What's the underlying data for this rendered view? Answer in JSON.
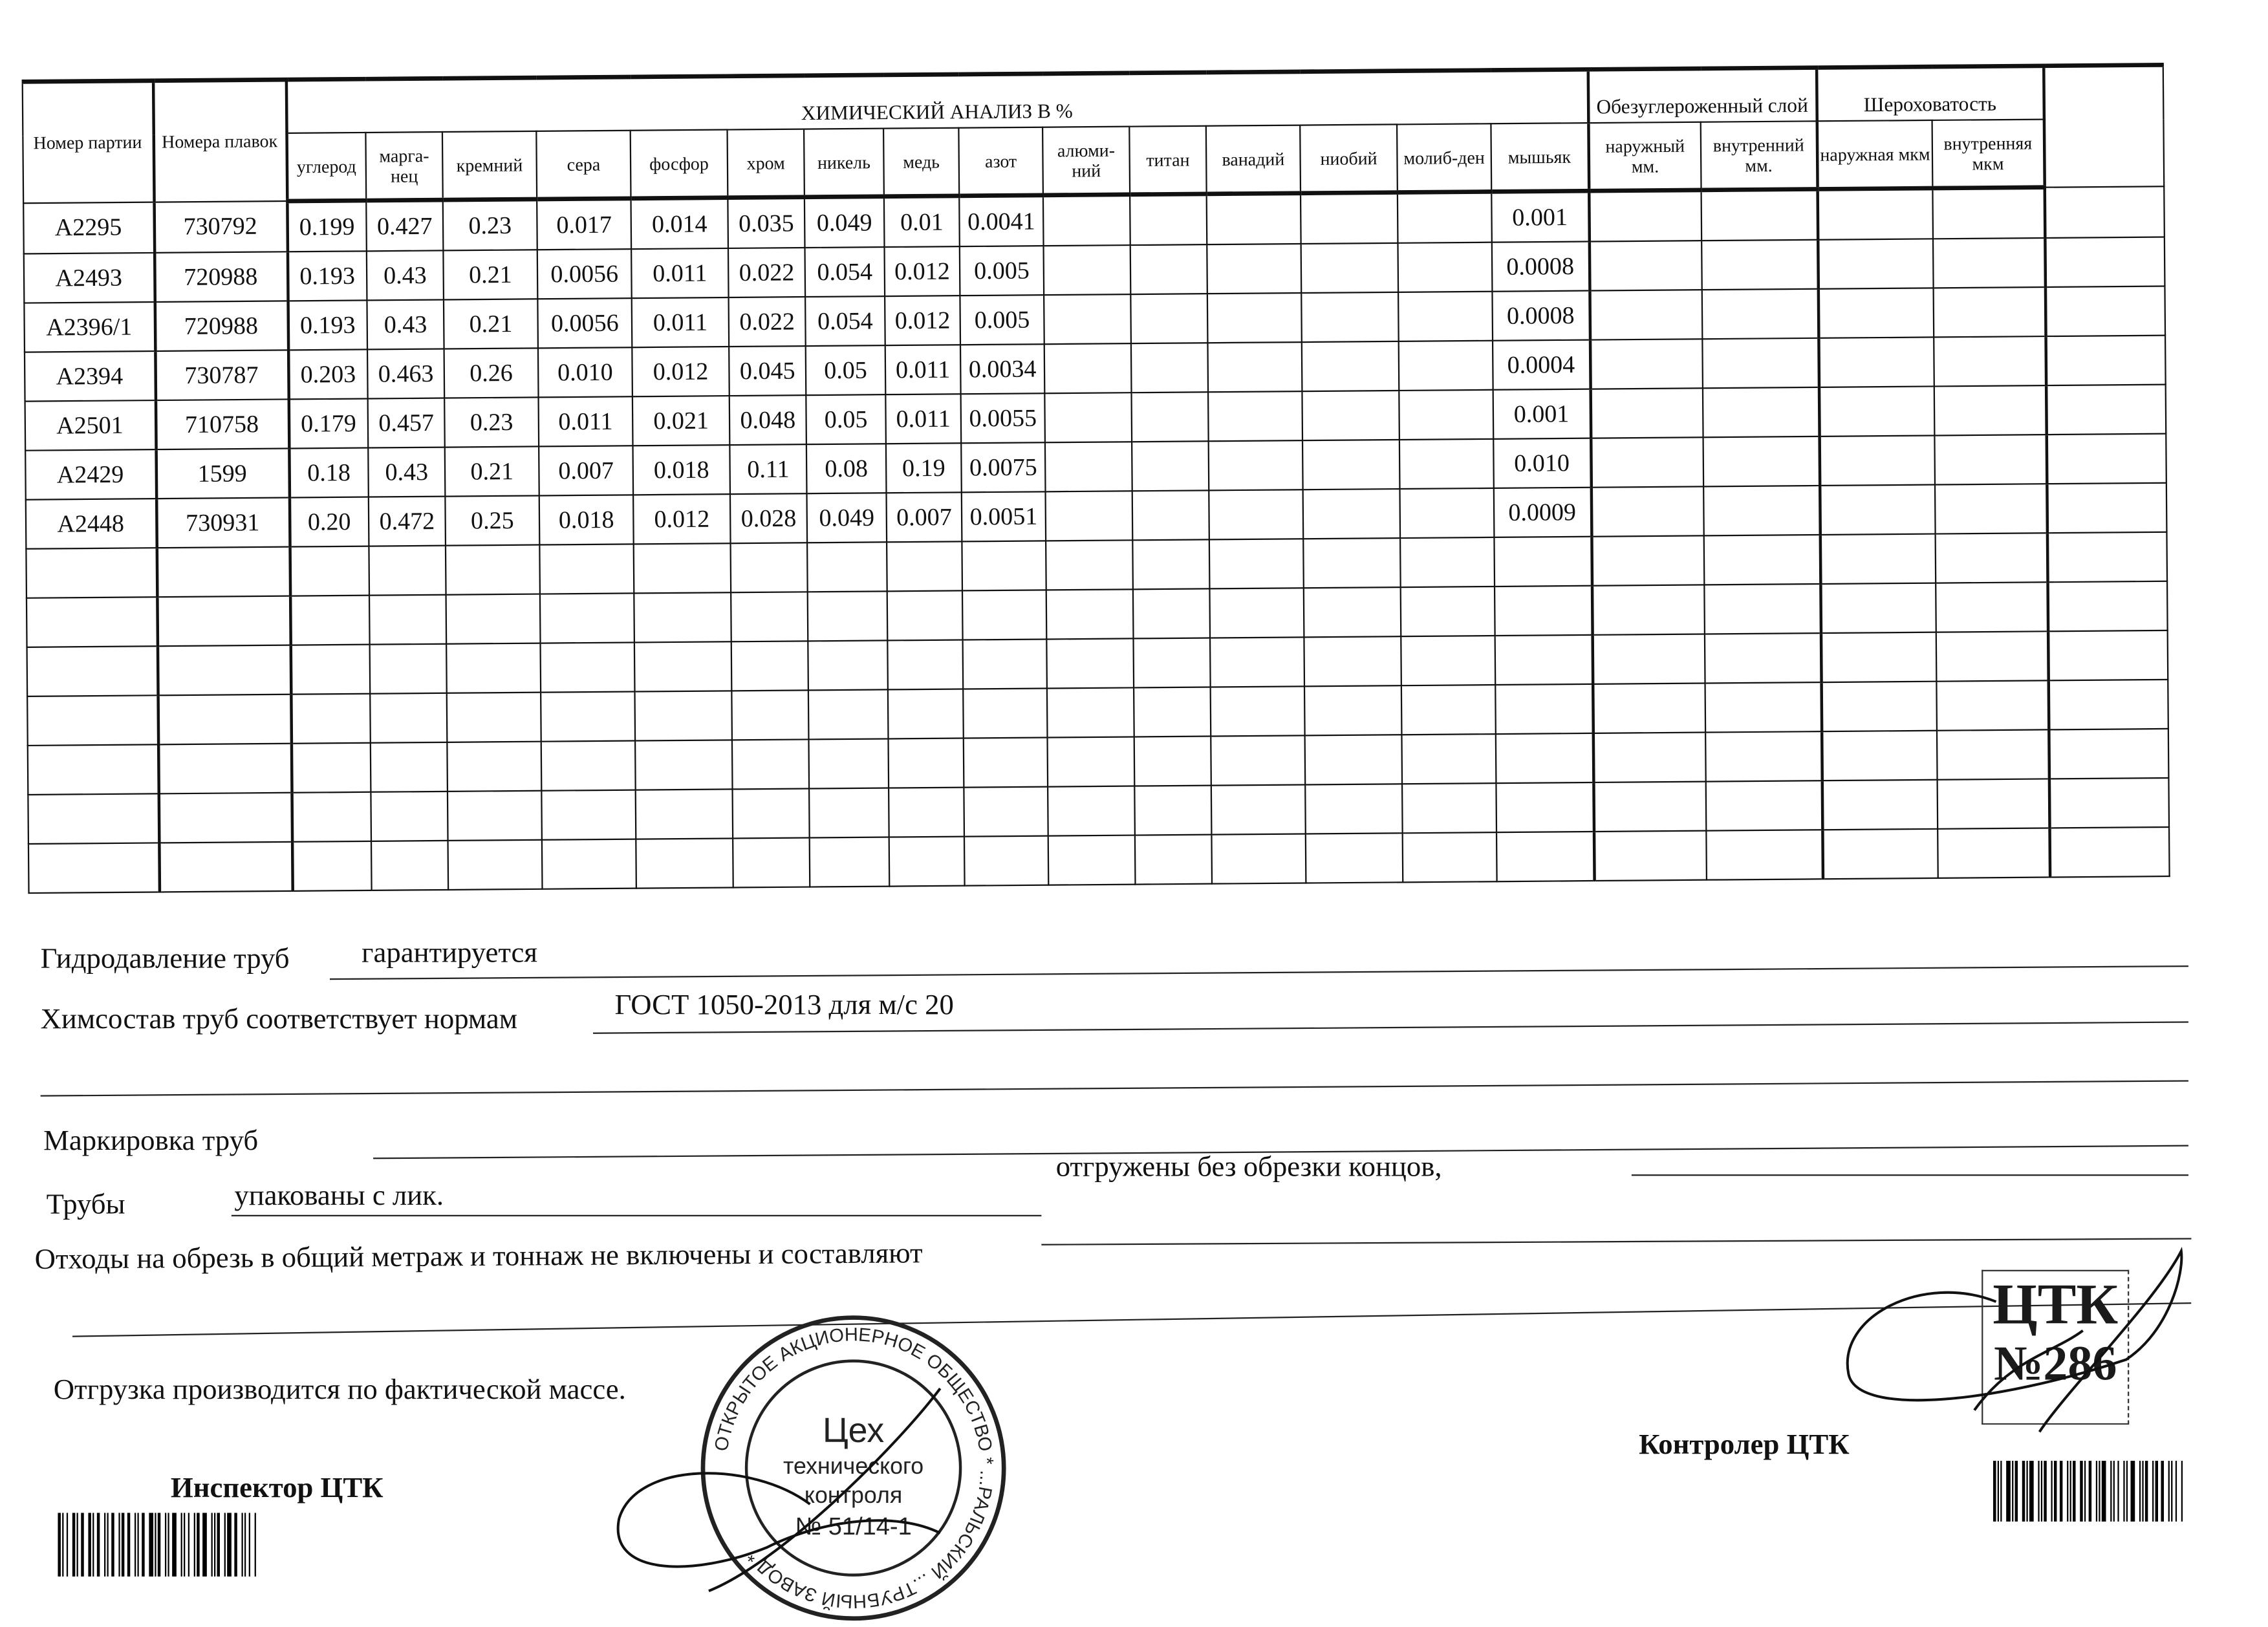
{
  "table": {
    "headers": {
      "batch_no": "Номер партии",
      "heat_no": "Номера плавок",
      "chem_group": "ХИМИЧЕСКИЙ АНАЛИЗ В %",
      "decarb_group": "Обезуглероженный слой",
      "rough_group": "Шероховатость",
      "elements": [
        "углерод",
        "марга-нец",
        "кремний",
        "сера",
        "фосфор",
        "хром",
        "никель",
        "медь",
        "азот",
        "алюми-ний",
        "титан",
        "ванадий",
        "ниобий",
        "молиб-ден",
        "мышьяк"
      ],
      "decarb": [
        "наружный мм.",
        "внутренний мм."
      ],
      "rough": [
        "наружная мкм",
        "внутренняя мкм"
      ]
    },
    "rows": [
      {
        "batch": "A2295",
        "heat": "730792",
        "values": [
          "0.199",
          "0.427",
          "0.23",
          "0.017",
          "0.014",
          "0.035",
          "0.049",
          "0.01",
          "0.0041",
          "",
          "",
          "",
          "",
          "",
          "0.001"
        ]
      },
      {
        "batch": "A2493",
        "heat": "720988",
        "values": [
          "0.193",
          "0.43",
          "0.21",
          "0.0056",
          "0.011",
          "0.022",
          "0.054",
          "0.012",
          "0.005",
          "",
          "",
          "",
          "",
          "",
          "0.0008"
        ]
      },
      {
        "batch": "A2396/1",
        "heat": "720988",
        "values": [
          "0.193",
          "0.43",
          "0.21",
          "0.0056",
          "0.011",
          "0.022",
          "0.054",
          "0.012",
          "0.005",
          "",
          "",
          "",
          "",
          "",
          "0.0008"
        ]
      },
      {
        "batch": "A2394",
        "heat": "730787",
        "values": [
          "0.203",
          "0.463",
          "0.26",
          "0.010",
          "0.012",
          "0.045",
          "0.05",
          "0.011",
          "0.0034",
          "",
          "",
          "",
          "",
          "",
          "0.0004"
        ]
      },
      {
        "batch": "A2501",
        "heat": "710758",
        "values": [
          "0.179",
          "0.457",
          "0.23",
          "0.011",
          "0.021",
          "0.048",
          "0.05",
          "0.011",
          "0.0055",
          "",
          "",
          "",
          "",
          "",
          "0.001"
        ]
      },
      {
        "batch": "A2429",
        "heat": "1599",
        "values": [
          "0.18",
          "0.43",
          "0.21",
          "0.007",
          "0.018",
          "0.11",
          "0.08",
          "0.19",
          "0.0075",
          "",
          "",
          "",
          "",
          "",
          "0.010"
        ]
      },
      {
        "batch": "A2448",
        "heat": "730931",
        "values": [
          "0.20",
          "0.472",
          "0.25",
          "0.018",
          "0.012",
          "0.028",
          "0.049",
          "0.007",
          "0.0051",
          "",
          "",
          "",
          "",
          "",
          "0.0009"
        ]
      }
    ],
    "empty_rows": 7
  },
  "form": {
    "hydro_label": "Гидродавление труб",
    "hydro_value": "гарантируется",
    "chem_label": "Химсостав труб соответствует нормам",
    "chem_value": "ГОСТ 1050-2013 для м/с 20",
    "marking_label": "Маркировка труб",
    "pipes_label": "Трубы",
    "pipes_value": "упакованы с лик.",
    "shipped_label": "отгружены без обрезки концов,",
    "waste_label": "Отходы на обрезь в общий метраж и тоннаж не включены и составляют",
    "shipping_note": "Отгрузка производится по фактической массе.",
    "inspector_label": "Инспектор ЦТК",
    "controller_label": "Контролер ЦТК"
  },
  "stamps": {
    "round_ring": "ОТКРЫТОЕ АКЦИОНЕРНОЕ ОБЩЕСТВО * ...РАЛЬСКИЙ ...ТРУБНЫЙ ЗАВОД *",
    "round_center": [
      "Цех",
      "технического",
      "контроля",
      "№ 51/14-1"
    ],
    "ctk_title": "ЦТК",
    "ctk_number": "№286"
  }
}
